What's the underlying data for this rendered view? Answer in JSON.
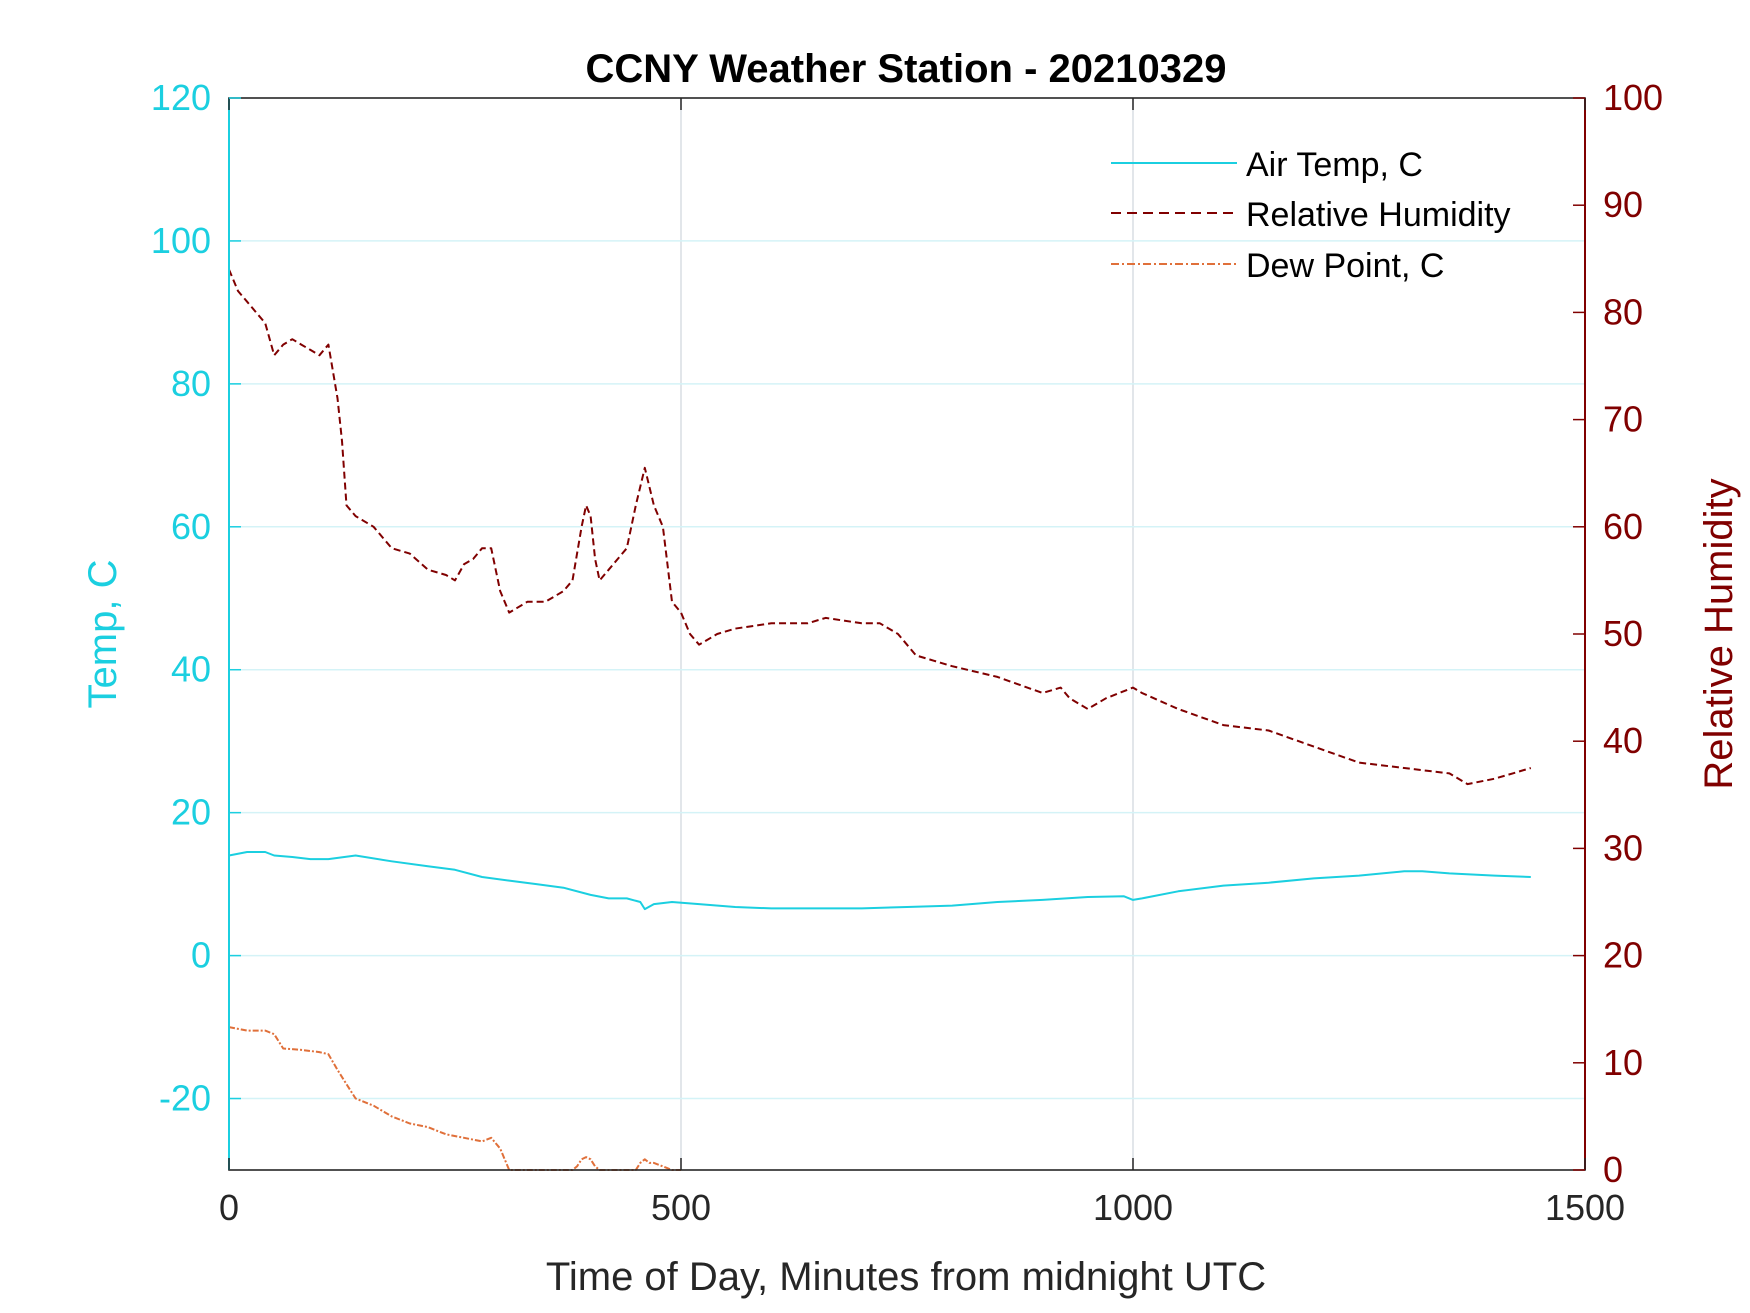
{
  "chart_data": {
    "type": "line",
    "title": "CCNY Weather Station - 20210329",
    "xlabel": "Time of Day, Minutes from midnight UTC",
    "ylabel_left": "Temp, C",
    "ylabel_right": "Relative Humidity",
    "xlim": [
      0,
      1500
    ],
    "ylim_left": [
      -30,
      120
    ],
    "ylim_right": [
      0,
      100
    ],
    "x_ticks": [
      "0",
      "500",
      "1000",
      "1500"
    ],
    "y_left_ticks": [
      "-20",
      "0",
      "20",
      "40",
      "60",
      "80",
      "100",
      "120"
    ],
    "y_right_ticks": [
      "0",
      "10",
      "20",
      "30",
      "40",
      "50",
      "60",
      "70",
      "80",
      "90",
      "100"
    ],
    "grid": true,
    "legend_position": "top-right",
    "colors": {
      "air_temp": "#1bcfe0",
      "relative_humidity": "#800000",
      "dew_point": "#e0703a"
    },
    "series": [
      {
        "name": "Air Temp, C",
        "axis": "left",
        "style": "solid",
        "x": [
          0,
          20,
          40,
          50,
          70,
          90,
          110,
          140,
          180,
          220,
          250,
          280,
          310,
          340,
          370,
          400,
          420,
          440,
          455,
          460,
          470,
          490,
          520,
          560,
          600,
          650,
          700,
          750,
          800,
          850,
          900,
          950,
          990,
          1000,
          1010,
          1050,
          1100,
          1150,
          1200,
          1250,
          1300,
          1320,
          1350,
          1400,
          1440
        ],
        "values": [
          14,
          14.5,
          14.5,
          14,
          13.8,
          13.5,
          13.5,
          14,
          13.2,
          12.5,
          12,
          11,
          10.5,
          10,
          9.5,
          8.5,
          8,
          8,
          7.5,
          6.5,
          7.2,
          7.5,
          7.2,
          6.8,
          6.6,
          6.6,
          6.6,
          6.8,
          7,
          7.5,
          7.8,
          8.2,
          8.3,
          7.8,
          8,
          9,
          9.8,
          10.2,
          10.8,
          11.2,
          11.8,
          11.8,
          11.5,
          11.2,
          11
        ]
      },
      {
        "name": "Relative Humidity",
        "axis": "right",
        "style": "dashed",
        "x": [
          0,
          10,
          20,
          30,
          40,
          50,
          60,
          70,
          80,
          90,
          100,
          110,
          120,
          125,
          130,
          140,
          160,
          180,
          200,
          220,
          240,
          250,
          260,
          270,
          280,
          290,
          300,
          310,
          330,
          350,
          370,
          380,
          390,
          395,
          400,
          405,
          410,
          420,
          430,
          440,
          450,
          460,
          470,
          480,
          490,
          500,
          510,
          520,
          540,
          560,
          600,
          640,
          660,
          700,
          720,
          740,
          760,
          780,
          800,
          850,
          900,
          920,
          930,
          950,
          970,
          1000,
          1010,
          1050,
          1100,
          1150,
          1200,
          1250,
          1300,
          1350,
          1370,
          1400,
          1420,
          1440
        ],
        "values": [
          84,
          82,
          81,
          80,
          79,
          76,
          77,
          77.5,
          77,
          76.5,
          76,
          77,
          72,
          68,
          62,
          61,
          60,
          58,
          57.5,
          56,
          55.5,
          55,
          56.5,
          57,
          58,
          58,
          54,
          52,
          53,
          53,
          54,
          55,
          60,
          62,
          61,
          57,
          55,
          56,
          57,
          58,
          62,
          65.5,
          62,
          60,
          53,
          52,
          50,
          49,
          50,
          50.5,
          51,
          51,
          51.5,
          51,
          51,
          50,
          48,
          47.5,
          47,
          46,
          44.5,
          45,
          44,
          43,
          44,
          45,
          44.5,
          43,
          41.5,
          41,
          39.5,
          38,
          37.5,
          37,
          36,
          36.5,
          37,
          37.5
        ]
      },
      {
        "name": "Dew Point, C",
        "axis": "left",
        "style": "dash-dot",
        "x": [
          0,
          20,
          40,
          50,
          60,
          80,
          100,
          110,
          120,
          130,
          140,
          160,
          180,
          200,
          220,
          240,
          260,
          280,
          290,
          300,
          310,
          330,
          350,
          370,
          380,
          385,
          390,
          395,
          400,
          405,
          410,
          420,
          430,
          440,
          450,
          455,
          460,
          465,
          470,
          480,
          490,
          500
        ],
        "values": [
          -10,
          -10.5,
          -10.5,
          -11,
          -13,
          -13.2,
          -13.5,
          -13.8,
          -16,
          -18,
          -20,
          -21,
          -22.5,
          -23.5,
          -24,
          -25,
          -25.5,
          -26,
          -25.5,
          -27,
          -30,
          -30,
          -30,
          -30,
          -30,
          -29.5,
          -28.5,
          -28.2,
          -28.5,
          -29.5,
          -30,
          -30,
          -30,
          -30,
          -30,
          -29,
          -28.5,
          -29,
          -29,
          -29.5,
          -30,
          -30
        ]
      }
    ]
  }
}
